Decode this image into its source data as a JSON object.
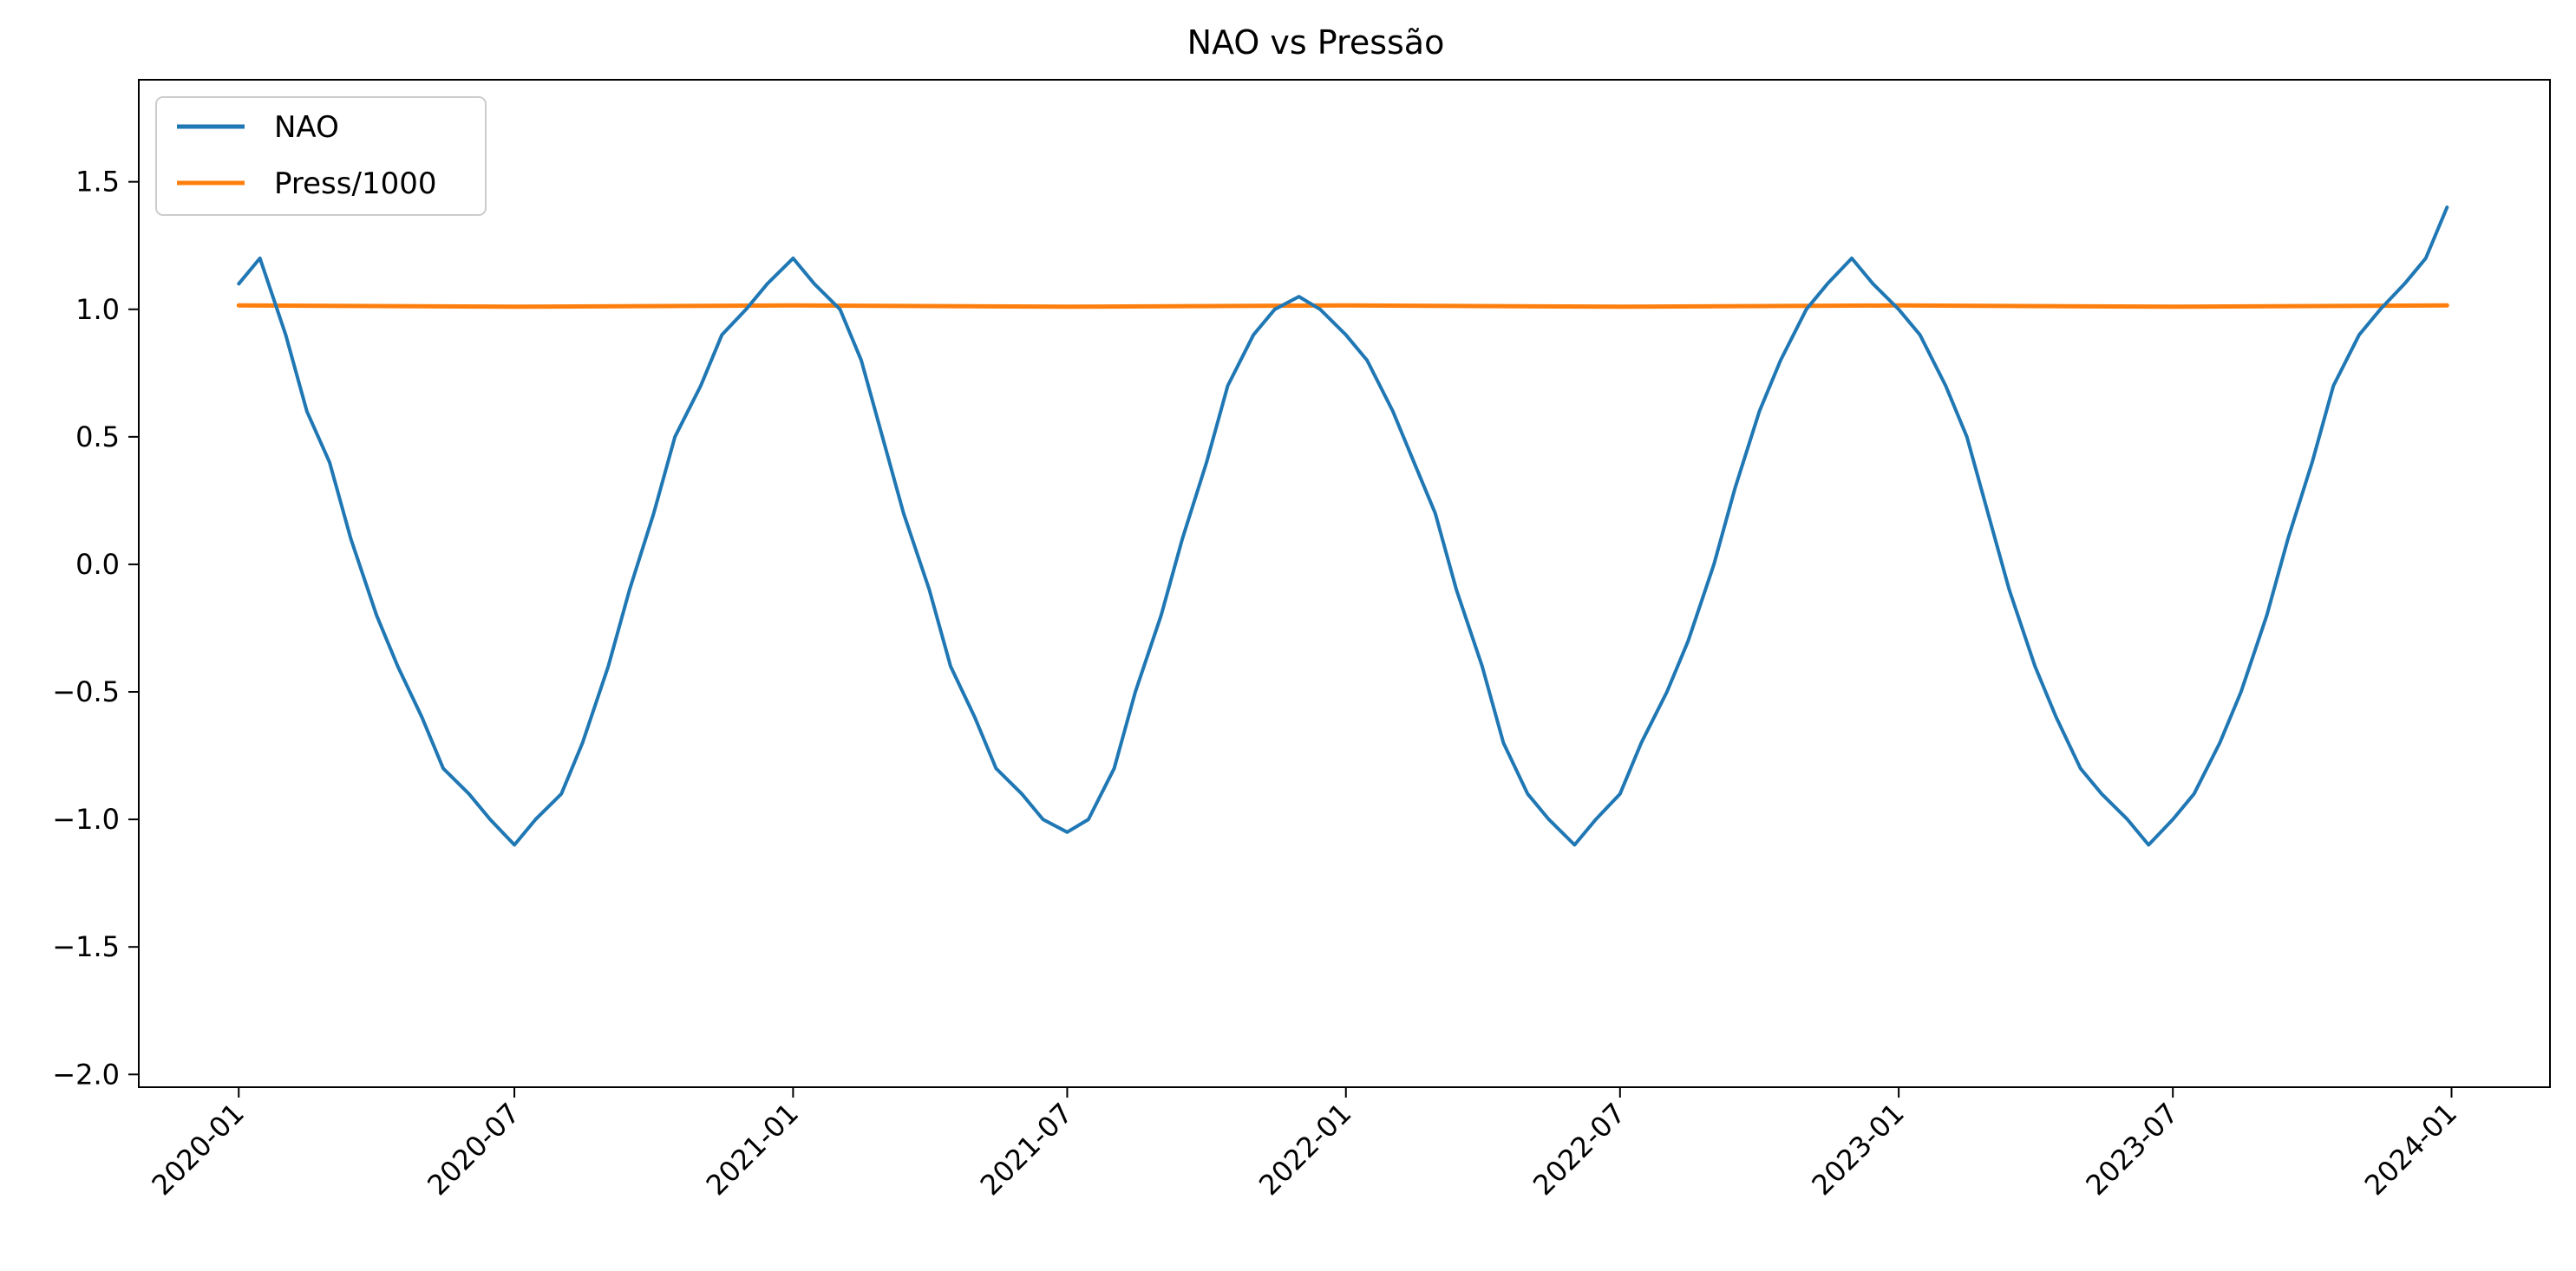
{
  "chart_data": {
    "type": "line",
    "title": "NAO vs Pressão",
    "xlabel": "",
    "ylabel": "",
    "grid": false,
    "legend_placement": "upper-left",
    "x_range": [
      "2019-10-27",
      "2024-03-06"
    ],
    "ylim": [
      -2.05,
      1.9
    ],
    "x_ticks": [
      "2020-01",
      "2020-07",
      "2021-01",
      "2021-07",
      "2022-01",
      "2022-07",
      "2023-01",
      "2023-07",
      "2024-01"
    ],
    "y_ticks": [
      "1.5",
      "1.0",
      "0.5",
      "0.0",
      "−0.5",
      "−1.0",
      "−1.5",
      "−2.0"
    ],
    "y_tick_values": [
      1.5,
      1.0,
      0.5,
      0.0,
      -0.5,
      -1.0,
      -1.5,
      -2.0
    ],
    "series": [
      {
        "name": "NAO",
        "color": "#1f77b4",
        "x": [
          "2020-01-01",
          "2020-01-15",
          "2020-02-01",
          "2020-02-15",
          "2020-03-01",
          "2020-03-15",
          "2020-04-01",
          "2020-04-15",
          "2020-05-01",
          "2020-05-15",
          "2020-06-01",
          "2020-06-15",
          "2020-07-01",
          "2020-07-15",
          "2020-08-01",
          "2020-08-15",
          "2020-09-01",
          "2020-09-15",
          "2020-10-01",
          "2020-10-15",
          "2020-11-01",
          "2020-11-15",
          "2020-12-01",
          "2020-12-15",
          "2021-01-01",
          "2021-01-15",
          "2021-02-01",
          "2021-02-15",
          "2021-03-01",
          "2021-03-15",
          "2021-04-01",
          "2021-04-15",
          "2021-05-01",
          "2021-05-15",
          "2021-06-01",
          "2021-06-15",
          "2021-07-01",
          "2021-07-15",
          "2021-08-01",
          "2021-08-15",
          "2021-09-01",
          "2021-09-15",
          "2021-10-01",
          "2021-10-15",
          "2021-11-01",
          "2021-11-15",
          "2021-12-01",
          "2021-12-15",
          "2022-01-01",
          "2022-01-15",
          "2022-02-01",
          "2022-02-15",
          "2022-03-01",
          "2022-03-15",
          "2022-04-01",
          "2022-04-15",
          "2022-05-01",
          "2022-05-15",
          "2022-06-01",
          "2022-06-15",
          "2022-07-01",
          "2022-07-15",
          "2022-08-01",
          "2022-08-15",
          "2022-09-01",
          "2022-09-15",
          "2022-10-01",
          "2022-10-15",
          "2022-11-01",
          "2022-11-15",
          "2022-12-01",
          "2022-12-15",
          "2023-01-01",
          "2023-01-15",
          "2023-02-01",
          "2023-02-15",
          "2023-03-01",
          "2023-03-15",
          "2023-04-01",
          "2023-04-15",
          "2023-05-01",
          "2023-05-15",
          "2023-06-01",
          "2023-06-15",
          "2023-07-01",
          "2023-07-15",
          "2023-08-01",
          "2023-08-15",
          "2023-09-01",
          "2023-09-15",
          "2023-10-01",
          "2023-10-15",
          "2023-11-01",
          "2023-11-15",
          "2023-12-01",
          "2023-12-15",
          "2023-12-29"
        ],
        "values": [
          1.1,
          1.2,
          0.9,
          0.6,
          0.4,
          0.1,
          -0.2,
          -0.4,
          -0.6,
          -0.8,
          -0.9,
          -1.0,
          -1.1,
          -1.0,
          -0.9,
          -0.7,
          -0.4,
          -0.1,
          0.2,
          0.5,
          0.7,
          0.9,
          1.0,
          1.1,
          1.2,
          1.1,
          1.0,
          0.8,
          0.5,
          0.2,
          -0.1,
          -0.4,
          -0.6,
          -0.8,
          -0.9,
          -1.0,
          -1.05,
          -1.0,
          -0.8,
          -0.5,
          -0.2,
          0.1,
          0.4,
          0.7,
          0.9,
          1.0,
          1.05,
          1.0,
          0.9,
          0.8,
          0.6,
          0.4,
          0.2,
          -0.1,
          -0.4,
          -0.7,
          -0.9,
          -1.0,
          -1.1,
          -1.0,
          -0.9,
          -0.7,
          -0.5,
          -0.3,
          0.0,
          0.3,
          0.6,
          0.8,
          1.0,
          1.1,
          1.2,
          1.1,
          1.0,
          0.9,
          0.7,
          0.5,
          0.2,
          -0.1,
          -0.4,
          -0.6,
          -0.8,
          -0.9,
          -1.0,
          -1.1,
          -1.0,
          -0.9,
          -0.7,
          -0.5,
          -0.2,
          0.1,
          0.4,
          0.7,
          0.9,
          1.0,
          1.1,
          1.2,
          1.4
        ]
      },
      {
        "name": "Press/1000",
        "color": "#ff7f0e",
        "x": [
          "2020-01-01",
          "2020-07-01",
          "2021-01-01",
          "2021-07-01",
          "2022-01-01",
          "2022-07-01",
          "2023-01-01",
          "2023-07-01",
          "2023-12-29"
        ],
        "values": [
          1.015,
          1.01,
          1.015,
          1.01,
          1.015,
          1.01,
          1.015,
          1.01,
          1.015
        ]
      }
    ]
  }
}
